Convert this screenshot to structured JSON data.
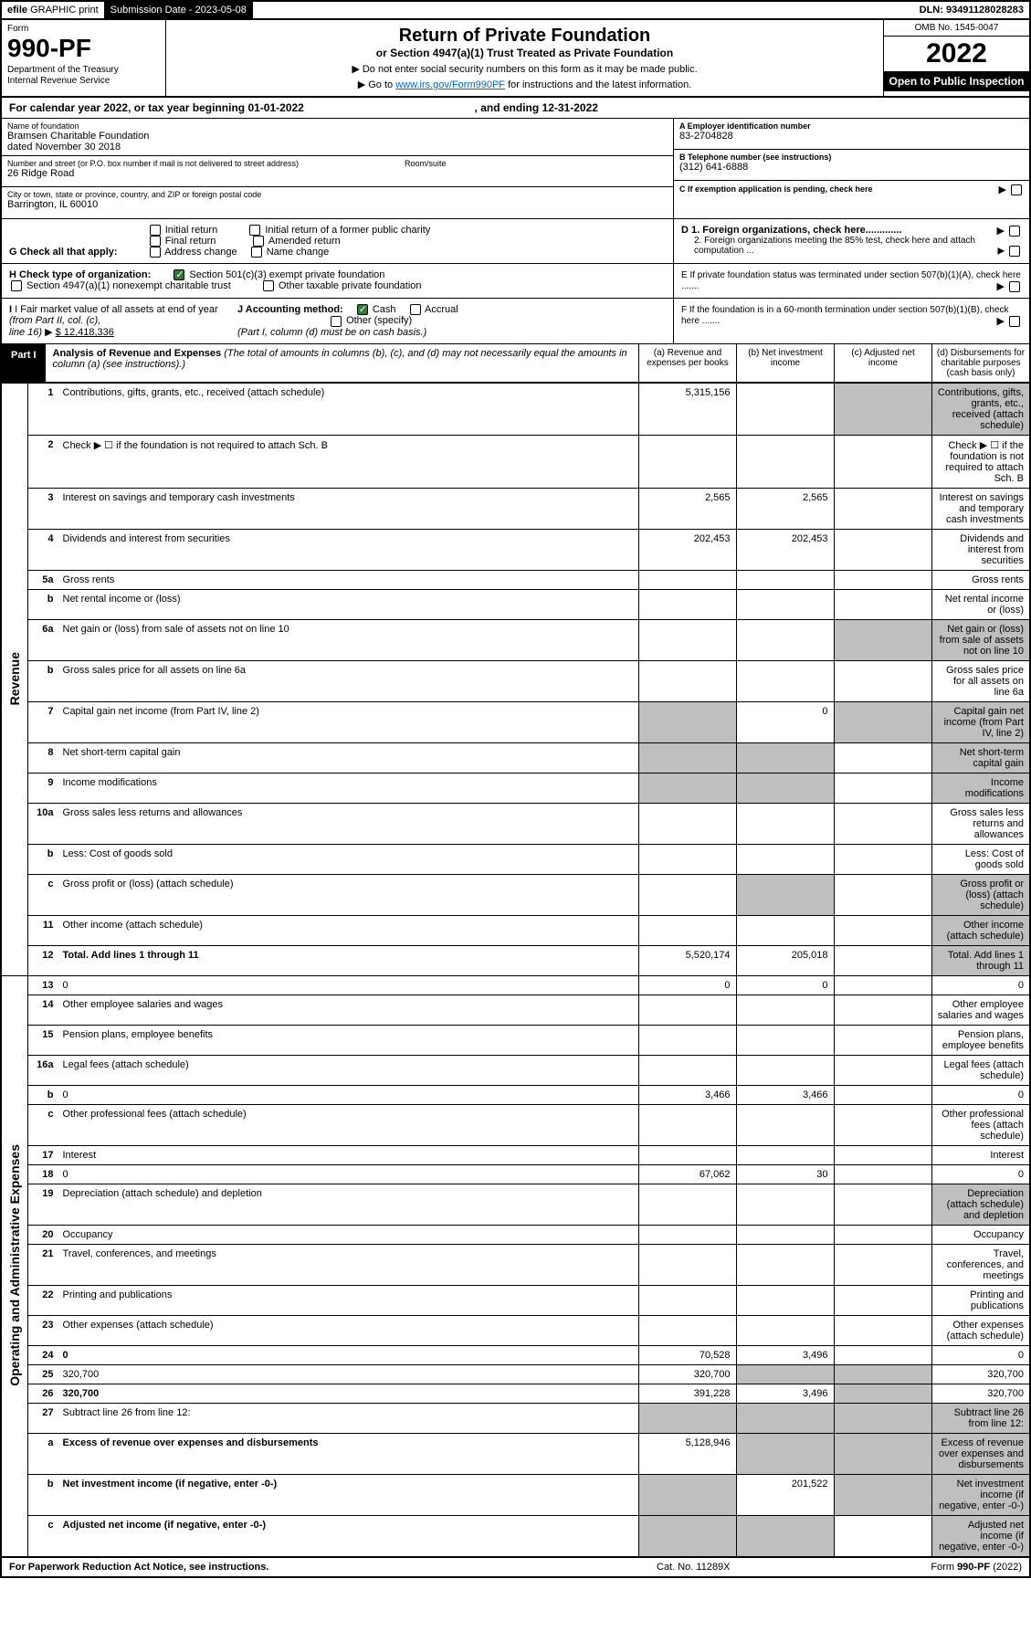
{
  "topbar": {
    "efile_prefix": "efile",
    "efile_rest": " GRAPHIC print",
    "submission_label": "Submission Date - ",
    "submission_date": "2023-05-08",
    "dln_label": "DLN: ",
    "dln": "93491128028283"
  },
  "header": {
    "form_label": "Form",
    "form_number": "990-PF",
    "dept1": "Department of the Treasury",
    "dept2": "Internal Revenue Service",
    "title": "Return of Private Foundation",
    "subtitle": "or Section 4947(a)(1) Trust Treated as Private Foundation",
    "note1": "▶ Do not enter social security numbers on this form as it may be made public.",
    "note2_pre": "▶ Go to ",
    "note2_link": "www.irs.gov/Form990PF",
    "note2_post": " for instructions and the latest information.",
    "omb": "OMB No. 1545-0047",
    "year": "2022",
    "open": "Open to Public Inspection"
  },
  "calyear": {
    "pre": "For calendar year 2022, or tax year beginning ",
    "begin": "01-01-2022",
    "mid": " , and ending ",
    "end": "12-31-2022"
  },
  "info": {
    "name_lbl": "Name of foundation",
    "name1": "Bramsen Charitable Foundation",
    "name2": "dated November 30 2018",
    "addr_lbl": "Number and street (or P.O. box number if mail is not delivered to street address)",
    "addr": "26 Ridge Road",
    "room_lbl": "Room/suite",
    "city_lbl": "City or town, state or province, country, and ZIP or foreign postal code",
    "city": "Barrington, IL  60010",
    "ein_lbl": "A Employer identification number",
    "ein": "83-2704828",
    "phone_lbl": "B Telephone number (see instructions)",
    "phone": "(312) 641-6888",
    "pending_lbl": "C If exemption application is pending, check here",
    "d1": "D 1. Foreign organizations, check here.............",
    "d2": "2. Foreign organizations meeting the 85% test, check here and attach computation ...",
    "e_lbl": "E  If private foundation status was terminated under section 507(b)(1)(A), check here .......",
    "f_lbl": "F  If the foundation is in a 60-month termination under section 507(b)(1)(B), check here ......."
  },
  "g": {
    "label": "G Check all that apply:",
    "initial": "Initial return",
    "final": "Final return",
    "addrchg": "Address change",
    "initial_pub": "Initial return of a former public charity",
    "amended": "Amended return",
    "namechg": "Name change"
  },
  "h": {
    "label": "H Check type of organization:",
    "opt1": "Section 501(c)(3) exempt private foundation",
    "opt2": "Section 4947(a)(1) nonexempt charitable trust",
    "opt3": "Other taxable private foundation"
  },
  "i": {
    "label_pre": "I Fair market value of all assets at end of year ",
    "label_mid": "(from Part II, col. (c),",
    "label_line": "line 16)",
    "arrow": "▶",
    "value": "$  12,418,336"
  },
  "j": {
    "label": "J Accounting method:",
    "cash": "Cash",
    "accrual": "Accrual",
    "other": "Other (specify)",
    "note": "(Part I, column (d) must be on cash basis.)"
  },
  "part1": {
    "badge": "Part I",
    "title_bold": "Analysis of Revenue and Expenses",
    "title_rest": " (The total of amounts in columns (b), (c), and (d) may not necessarily equal the amounts in column (a) (see instructions).)",
    "col_a": "(a)   Revenue and expenses per books",
    "col_b": "(b)  Net investment income",
    "col_c": "(c)  Adjusted net income",
    "col_d": "(d)  Disbursements for charitable purposes (cash basis only)"
  },
  "sides": {
    "revenue": "Revenue",
    "expenses": "Operating and Administrative Expenses"
  },
  "rows": [
    {
      "n": "1",
      "d": "Contributions, gifts, grants, etc., received (attach schedule)",
      "a": "5,315,156",
      "c_grey": true,
      "d_grey": true
    },
    {
      "n": "2",
      "d": "Check ▶ ☐ if the foundation is not required to attach Sch. B",
      "nocols": true
    },
    {
      "n": "3",
      "d": "Interest on savings and temporary cash investments",
      "a": "2,565",
      "b": "2,565"
    },
    {
      "n": "4",
      "d": "Dividends and interest from securities",
      "a": "202,453",
      "b": "202,453"
    },
    {
      "n": "5a",
      "d": "Gross rents"
    },
    {
      "n": "b",
      "d": "Net rental income or (loss)",
      "nocols": true
    },
    {
      "n": "6a",
      "d": "Net gain or (loss) from sale of assets not on line 10",
      "c_grey": true,
      "d_grey": true
    },
    {
      "n": "b",
      "d": "Gross sales price for all assets on line 6a",
      "nocols": true
    },
    {
      "n": "7",
      "d": "Capital gain net income (from Part IV, line 2)",
      "b": "0",
      "a_grey": true,
      "c_grey": true,
      "d_grey": true
    },
    {
      "n": "8",
      "d": "Net short-term capital gain",
      "a_grey": true,
      "b_grey": true,
      "d_grey": true
    },
    {
      "n": "9",
      "d": "Income modifications",
      "a_grey": true,
      "b_grey": true,
      "d_grey": true
    },
    {
      "n": "10a",
      "d": "Gross sales less returns and allowances",
      "nocols": true
    },
    {
      "n": "b",
      "d": "Less: Cost of goods sold",
      "nocols": true
    },
    {
      "n": "c",
      "d": "Gross profit or (loss) (attach schedule)",
      "b_grey": true,
      "d_grey": true
    },
    {
      "n": "11",
      "d": "Other income (attach schedule)",
      "d_grey": true
    },
    {
      "n": "12",
      "d": "Total. Add lines 1 through 11",
      "bold": true,
      "a": "5,520,174",
      "b": "205,018",
      "d_grey": true
    }
  ],
  "exp_rows": [
    {
      "n": "13",
      "d": "0",
      "a": "0",
      "b": "0"
    },
    {
      "n": "14",
      "d": "Other employee salaries and wages"
    },
    {
      "n": "15",
      "d": "Pension plans, employee benefits"
    },
    {
      "n": "16a",
      "d": "Legal fees (attach schedule)"
    },
    {
      "n": "b",
      "d": "0",
      "a": "3,466",
      "b": "3,466"
    },
    {
      "n": "c",
      "d": "Other professional fees (attach schedule)"
    },
    {
      "n": "17",
      "d": "Interest"
    },
    {
      "n": "18",
      "d": "0",
      "a": "67,062",
      "b": "30"
    },
    {
      "n": "19",
      "d": "Depreciation (attach schedule) and depletion",
      "d_grey": true
    },
    {
      "n": "20",
      "d": "Occupancy"
    },
    {
      "n": "21",
      "d": "Travel, conferences, and meetings"
    },
    {
      "n": "22",
      "d": "Printing and publications"
    },
    {
      "n": "23",
      "d": "Other expenses (attach schedule)"
    },
    {
      "n": "24",
      "d": "0",
      "bold": true,
      "a": "70,528",
      "b": "3,496"
    },
    {
      "n": "25",
      "d": "320,700",
      "a": "320,700",
      "b_grey": true,
      "c_grey": true
    },
    {
      "n": "26",
      "d": "320,700",
      "bold": true,
      "a": "391,228",
      "b": "3,496",
      "c_grey": true
    },
    {
      "n": "27",
      "d": "Subtract line 26 from line 12:",
      "a_grey": true,
      "b_grey": true,
      "c_grey": true,
      "d_grey": true
    },
    {
      "n": "a",
      "d": "Excess of revenue over expenses and disbursements",
      "bold": true,
      "a": "5,128,946",
      "b_grey": true,
      "c_grey": true,
      "d_grey": true
    },
    {
      "n": "b",
      "d": "Net investment income (if negative, enter -0-)",
      "bold": true,
      "a_grey": true,
      "b": "201,522",
      "c_grey": true,
      "d_grey": true
    },
    {
      "n": "c",
      "d": "Adjusted net income (if negative, enter -0-)",
      "bold": true,
      "a_grey": true,
      "b_grey": true,
      "d_grey": true
    }
  ],
  "footer": {
    "left": "For Paperwork Reduction Act Notice, see instructions.",
    "mid": "Cat. No. 11289X",
    "right": "Form 990-PF (2022)"
  }
}
